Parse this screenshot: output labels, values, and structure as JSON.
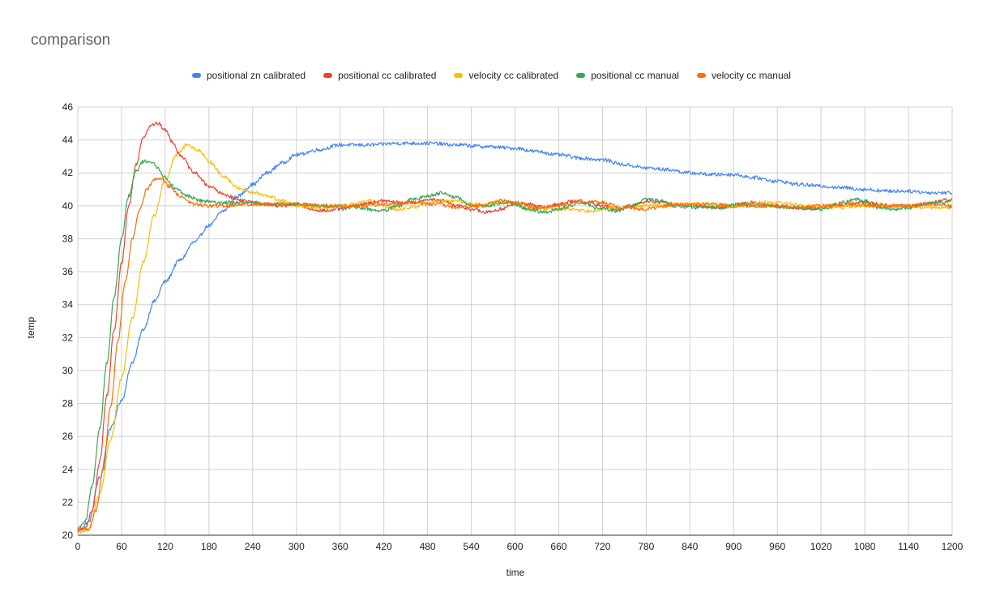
{
  "chart_data": {
    "type": "line",
    "title": "comparison",
    "xlabel": "time",
    "ylabel": "temp",
    "xlim": [
      0,
      1200
    ],
    "ylim": [
      20,
      46
    ],
    "x_ticks": [
      "0",
      "60",
      "120",
      "180",
      "240",
      "300",
      "360",
      "420",
      "480",
      "540",
      "600",
      "660",
      "720",
      "780",
      "840",
      "900",
      "960",
      "1020",
      "1080",
      "1140",
      "1200"
    ],
    "y_ticks": [
      "20",
      "22",
      "24",
      "26",
      "28",
      "30",
      "32",
      "34",
      "36",
      "38",
      "40",
      "42",
      "44",
      "46"
    ],
    "grid": true,
    "legend_position": "top",
    "series": [
      {
        "name": "positional zn calibrated",
        "color": "#4285f4",
        "points": [
          [
            0,
            20.2
          ],
          [
            15,
            20.8
          ],
          [
            30,
            23.5
          ],
          [
            45,
            26.5
          ],
          [
            60,
            28.2
          ],
          [
            75,
            30.5
          ],
          [
            90,
            32.5
          ],
          [
            105,
            34.2
          ],
          [
            120,
            35.4
          ],
          [
            140,
            36.7
          ],
          [
            160,
            37.8
          ],
          [
            180,
            38.8
          ],
          [
            200,
            39.7
          ],
          [
            220,
            40.6
          ],
          [
            240,
            41.3
          ],
          [
            260,
            42.0
          ],
          [
            280,
            42.6
          ],
          [
            300,
            43.1
          ],
          [
            330,
            43.4
          ],
          [
            360,
            43.7
          ],
          [
            400,
            43.7
          ],
          [
            440,
            43.8
          ],
          [
            480,
            43.8
          ],
          [
            520,
            43.7
          ],
          [
            560,
            43.6
          ],
          [
            600,
            43.5
          ],
          [
            630,
            43.3
          ],
          [
            660,
            43.1
          ],
          [
            690,
            42.9
          ],
          [
            720,
            42.8
          ],
          [
            750,
            42.5
          ],
          [
            780,
            42.3
          ],
          [
            810,
            42.2
          ],
          [
            840,
            42.0
          ],
          [
            870,
            41.9
          ],
          [
            900,
            41.9
          ],
          [
            930,
            41.7
          ],
          [
            960,
            41.5
          ],
          [
            990,
            41.3
          ],
          [
            1020,
            41.2
          ],
          [
            1050,
            41.1
          ],
          [
            1080,
            41.0
          ],
          [
            1110,
            40.9
          ],
          [
            1140,
            40.9
          ],
          [
            1170,
            40.8
          ],
          [
            1200,
            40.8
          ]
        ]
      },
      {
        "name": "positional cc calibrated",
        "color": "#ea4335",
        "points": [
          [
            0,
            20.3
          ],
          [
            10,
            20.4
          ],
          [
            20,
            21.5
          ],
          [
            30,
            24.5
          ],
          [
            40,
            28.5
          ],
          [
            50,
            32.5
          ],
          [
            60,
            36.5
          ],
          [
            70,
            40.0
          ],
          [
            80,
            42.5
          ],
          [
            90,
            44.2
          ],
          [
            100,
            44.9
          ],
          [
            110,
            45.0
          ],
          [
            120,
            44.6
          ],
          [
            130,
            43.9
          ],
          [
            140,
            43.1
          ],
          [
            160,
            42.0
          ],
          [
            180,
            41.2
          ],
          [
            200,
            40.7
          ],
          [
            220,
            40.4
          ],
          [
            240,
            40.2
          ],
          [
            260,
            40.1
          ],
          [
            280,
            40.0
          ],
          [
            300,
            40.1
          ],
          [
            320,
            39.8
          ],
          [
            340,
            39.7
          ],
          [
            360,
            39.8
          ],
          [
            380,
            40.0
          ],
          [
            400,
            40.2
          ],
          [
            420,
            40.3
          ],
          [
            440,
            40.2
          ],
          [
            460,
            40.2
          ],
          [
            480,
            40.4
          ],
          [
            500,
            40.3
          ],
          [
            520,
            40.0
          ],
          [
            540,
            39.8
          ],
          [
            560,
            39.6
          ],
          [
            580,
            39.8
          ],
          [
            600,
            40.1
          ],
          [
            620,
            40.1
          ],
          [
            640,
            39.9
          ],
          [
            660,
            40.1
          ],
          [
            680,
            40.3
          ],
          [
            700,
            40.2
          ],
          [
            720,
            40.0
          ],
          [
            740,
            39.8
          ],
          [
            760,
            40.0
          ],
          [
            780,
            40.3
          ],
          [
            800,
            40.2
          ],
          [
            840,
            40.0
          ],
          [
            880,
            39.9
          ],
          [
            920,
            40.2
          ],
          [
            960,
            40.0
          ],
          [
            1000,
            39.8
          ],
          [
            1040,
            40.0
          ],
          [
            1080,
            40.2
          ],
          [
            1120,
            40.0
          ],
          [
            1160,
            40.1
          ],
          [
            1200,
            40.4
          ]
        ]
      },
      {
        "name": "velocity cc calibrated",
        "color": "#fbbc04",
        "points": [
          [
            0,
            20.2
          ],
          [
            15,
            20.3
          ],
          [
            30,
            22.5
          ],
          [
            45,
            25.8
          ],
          [
            60,
            29.5
          ],
          [
            75,
            33.2
          ],
          [
            90,
            36.6
          ],
          [
            105,
            39.4
          ],
          [
            120,
            41.6
          ],
          [
            135,
            43.1
          ],
          [
            150,
            43.7
          ],
          [
            165,
            43.4
          ],
          [
            180,
            42.7
          ],
          [
            200,
            41.8
          ],
          [
            220,
            41.1
          ],
          [
            240,
            40.8
          ],
          [
            260,
            40.6
          ],
          [
            280,
            40.3
          ],
          [
            300,
            40.0
          ],
          [
            320,
            39.9
          ],
          [
            340,
            39.9
          ],
          [
            360,
            40.0
          ],
          [
            380,
            40.1
          ],
          [
            400,
            40.3
          ],
          [
            420,
            40.0
          ],
          [
            440,
            39.8
          ],
          [
            460,
            39.9
          ],
          [
            480,
            40.2
          ],
          [
            500,
            40.3
          ],
          [
            520,
            40.3
          ],
          [
            540,
            40.1
          ],
          [
            560,
            40.1
          ],
          [
            580,
            40.3
          ],
          [
            600,
            40.1
          ],
          [
            620,
            39.8
          ],
          [
            660,
            39.8
          ],
          [
            680,
            39.8
          ],
          [
            700,
            39.7
          ],
          [
            720,
            39.8
          ],
          [
            740,
            39.9
          ],
          [
            760,
            39.9
          ],
          [
            780,
            40.0
          ],
          [
            820,
            40.1
          ],
          [
            860,
            40.1
          ],
          [
            900,
            40.0
          ],
          [
            940,
            40.2
          ],
          [
            960,
            40.2
          ],
          [
            1000,
            40.0
          ],
          [
            1040,
            39.9
          ],
          [
            1080,
            40.0
          ],
          [
            1120,
            40.0
          ],
          [
            1160,
            39.9
          ],
          [
            1200,
            39.9
          ]
        ]
      },
      {
        "name": "positional cc manual",
        "color": "#34a853",
        "points": [
          [
            0,
            20.4
          ],
          [
            10,
            20.8
          ],
          [
            20,
            23.0
          ],
          [
            30,
            26.5
          ],
          [
            40,
            30.5
          ],
          [
            50,
            34.5
          ],
          [
            60,
            38.0
          ],
          [
            70,
            40.6
          ],
          [
            80,
            42.1
          ],
          [
            90,
            42.7
          ],
          [
            100,
            42.7
          ],
          [
            110,
            42.3
          ],
          [
            120,
            41.7
          ],
          [
            135,
            41.0
          ],
          [
            150,
            40.6
          ],
          [
            170,
            40.3
          ],
          [
            190,
            40.2
          ],
          [
            210,
            40.2
          ],
          [
            230,
            40.2
          ],
          [
            260,
            40.1
          ],
          [
            300,
            40.1
          ],
          [
            340,
            40.0
          ],
          [
            380,
            39.9
          ],
          [
            420,
            39.7
          ],
          [
            440,
            40.0
          ],
          [
            460,
            40.4
          ],
          [
            480,
            40.6
          ],
          [
            500,
            40.8
          ],
          [
            520,
            40.5
          ],
          [
            540,
            40.0
          ],
          [
            560,
            40.0
          ],
          [
            590,
            40.2
          ],
          [
            620,
            39.8
          ],
          [
            640,
            39.6
          ],
          [
            660,
            39.8
          ],
          [
            690,
            40.2
          ],
          [
            720,
            39.8
          ],
          [
            740,
            39.7
          ],
          [
            760,
            40.0
          ],
          [
            780,
            40.4
          ],
          [
            800,
            40.3
          ],
          [
            820,
            40.0
          ],
          [
            850,
            39.9
          ],
          [
            880,
            39.9
          ],
          [
            910,
            40.1
          ],
          [
            940,
            40.0
          ],
          [
            980,
            39.9
          ],
          [
            1020,
            39.8
          ],
          [
            1050,
            40.2
          ],
          [
            1065,
            40.4
          ],
          [
            1080,
            40.3
          ],
          [
            1100,
            39.9
          ],
          [
            1120,
            39.8
          ],
          [
            1140,
            39.9
          ],
          [
            1170,
            40.2
          ],
          [
            1200,
            40.3
          ]
        ]
      },
      {
        "name": "velocity cc manual",
        "color": "#ff6d01",
        "points": [
          [
            0,
            20.4
          ],
          [
            15,
            20.4
          ],
          [
            25,
            21.5
          ],
          [
            35,
            24.0
          ],
          [
            45,
            27.8
          ],
          [
            55,
            31.8
          ],
          [
            65,
            35.3
          ],
          [
            75,
            38.0
          ],
          [
            85,
            39.8
          ],
          [
            95,
            41.0
          ],
          [
            105,
            41.6
          ],
          [
            115,
            41.6
          ],
          [
            125,
            41.2
          ],
          [
            140,
            40.6
          ],
          [
            160,
            40.1
          ],
          [
            180,
            40.0
          ],
          [
            200,
            40.0
          ],
          [
            230,
            40.1
          ],
          [
            260,
            40.1
          ],
          [
            300,
            40.1
          ],
          [
            340,
            40.0
          ],
          [
            380,
            40.0
          ],
          [
            420,
            40.1
          ],
          [
            460,
            40.2
          ],
          [
            490,
            40.1
          ],
          [
            520,
            39.9
          ],
          [
            550,
            40.0
          ],
          [
            580,
            40.3
          ],
          [
            600,
            40.2
          ],
          [
            630,
            39.9
          ],
          [
            660,
            40.0
          ],
          [
            690,
            40.3
          ],
          [
            720,
            40.2
          ],
          [
            750,
            39.9
          ],
          [
            780,
            39.8
          ],
          [
            810,
            40.0
          ],
          [
            840,
            40.1
          ],
          [
            870,
            40.1
          ],
          [
            900,
            40.0
          ],
          [
            940,
            40.0
          ],
          [
            980,
            39.9
          ],
          [
            1020,
            40.0
          ],
          [
            1060,
            40.1
          ],
          [
            1100,
            40.0
          ],
          [
            1140,
            40.0
          ],
          [
            1170,
            40.1
          ],
          [
            1200,
            40.0
          ]
        ]
      }
    ]
  }
}
